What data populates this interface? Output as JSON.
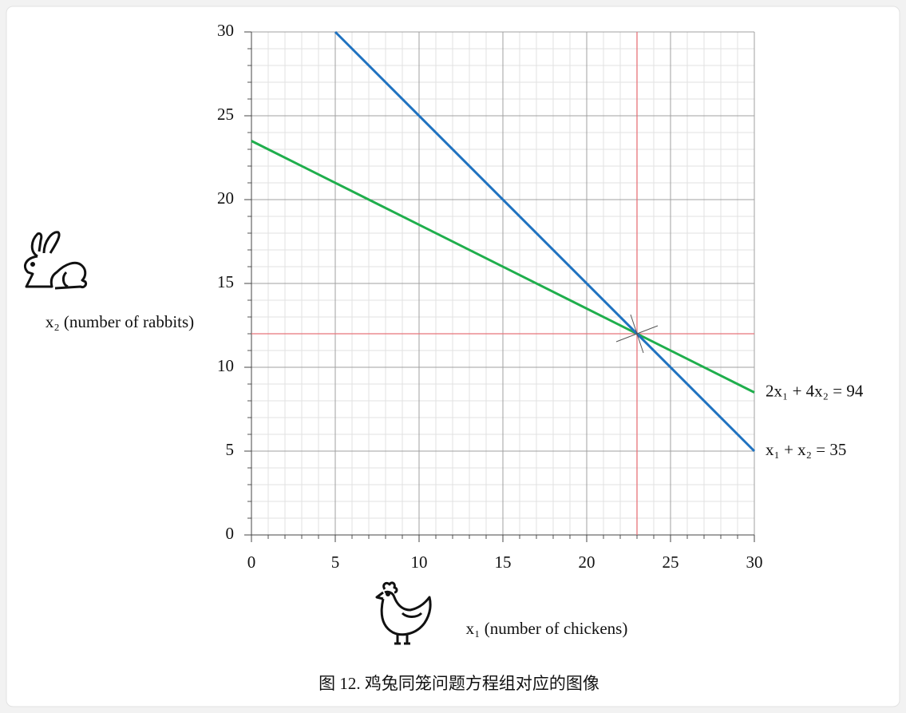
{
  "chart_data": {
    "type": "line",
    "xlim": [
      0,
      30
    ],
    "ylim": [
      0,
      30
    ],
    "xticks": [
      0,
      5,
      10,
      15,
      20,
      25,
      30
    ],
    "yticks": [
      0,
      5,
      10,
      15,
      20,
      25,
      30
    ],
    "grid": true,
    "minor_grid_step": 1,
    "xlabel": "x₁ (number of chickens)",
    "ylabel": "x₂ (number of rabbits)",
    "series": [
      {
        "name": "2x₁ + 4x₂ = 94",
        "color": "#1fae4c",
        "x": [
          0,
          30
        ],
        "values": [
          23.5,
          8.5
        ]
      },
      {
        "name": "x₁ + x₂ = 35",
        "color": "#1f72c0",
        "x": [
          5,
          30
        ],
        "values": [
          30,
          5
        ]
      }
    ],
    "intersection": {
      "x": 23,
      "y": 12,
      "color": "#e8737a"
    },
    "caption": "图 12. 鸡兔同笼问题方程组对应的图像"
  }
}
